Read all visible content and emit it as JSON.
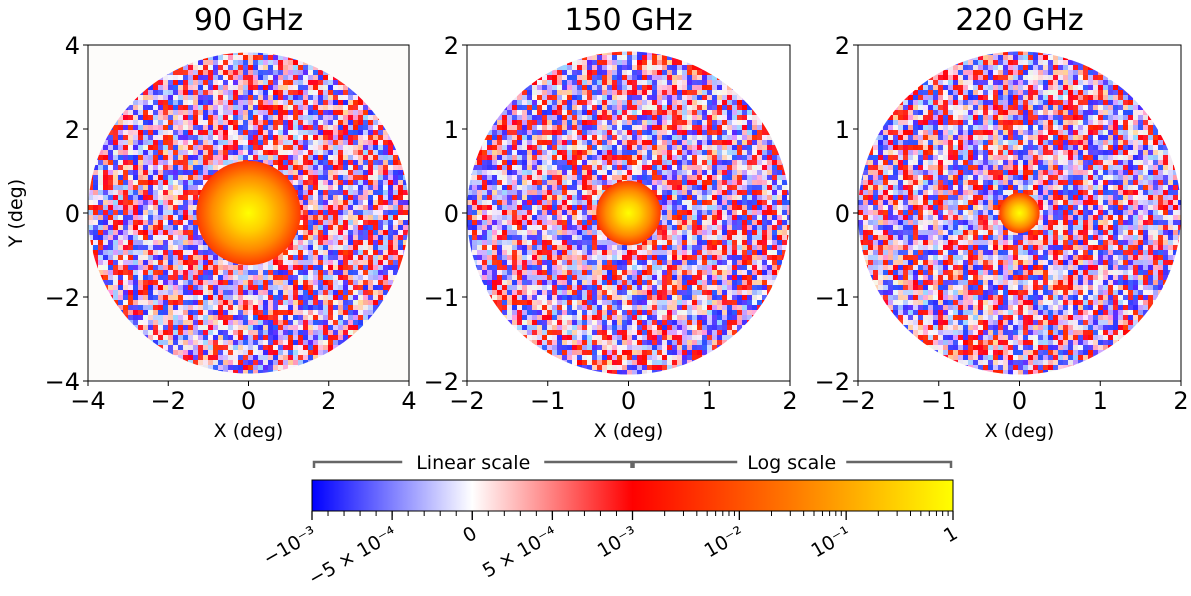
{
  "chart_data": [
    {
      "type": "heatmap",
      "title": "90 GHz",
      "xlabel": "X (deg)",
      "ylabel": "Y (deg)",
      "xlim": [
        -4,
        4
      ],
      "ylim": [
        -4,
        4
      ],
      "xticks": [
        "−4",
        "−2",
        "0",
        "2",
        "4"
      ],
      "yticks": [
        "4",
        "2",
        "0",
        "−2",
        "−4"
      ],
      "mask": "circle",
      "aperture_radius_deg": 4,
      "core_radius_deg": 1.3,
      "core_peak_value": 1
    },
    {
      "type": "heatmap",
      "title": "150 GHz",
      "xlabel": "X (deg)",
      "ylabel": "",
      "xlim": [
        -2,
        2
      ],
      "ylim": [
        -2,
        2
      ],
      "xticks": [
        "−2",
        "−1",
        "0",
        "1",
        "2"
      ],
      "yticks": [
        "2",
        "1",
        "0",
        "−1",
        "−2"
      ],
      "mask": "circle",
      "aperture_radius_deg": 2,
      "core_radius_deg": 0.4,
      "core_peak_value": 1
    },
    {
      "type": "heatmap",
      "title": "220 GHz",
      "xlabel": "X (deg)",
      "ylabel": "",
      "xlim": [
        -2,
        2
      ],
      "ylim": [
        -2,
        2
      ],
      "xticks": [
        "−2",
        "−1",
        "0",
        "1",
        "2"
      ],
      "yticks": [
        "2",
        "1",
        "0",
        "−1",
        "−2"
      ],
      "mask": "circle",
      "aperture_radius_deg": 2,
      "core_radius_deg": 0.25,
      "core_peak_value": 1
    }
  ],
  "colorbar": {
    "linear_label": "Linear scale",
    "log_label": "Log scale",
    "linear_range": [
      -0.001,
      0.001
    ],
    "log_range": [
      0.001,
      1
    ],
    "tick_labels": [
      {
        "value": -0.001,
        "label": "−10⁻³"
      },
      {
        "value": -0.0005,
        "label": "−5 × 10⁻⁴"
      },
      {
        "value": 0,
        "label": "0"
      },
      {
        "value": 0.0005,
        "label": "5 × 10⁻⁴"
      },
      {
        "value": 0.001,
        "label": "10⁻³"
      },
      {
        "value": 0.01,
        "label": "10⁻²"
      },
      {
        "value": 0.1,
        "label": "10⁻¹"
      },
      {
        "value": 1,
        "label": "1"
      }
    ],
    "colors": {
      "neg": "#0000ff",
      "zero": "#ffffff",
      "pos_linear_end": "#ff0000",
      "log_mid": "#ff8800",
      "log_end": "#ffff00"
    }
  }
}
